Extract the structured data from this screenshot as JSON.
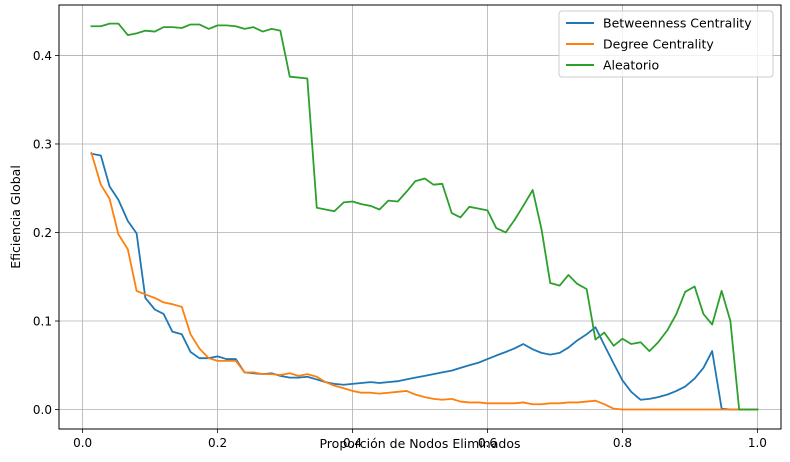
{
  "chart_data": {
    "type": "line",
    "title": "",
    "xlabel": "Proporción de Nodos Eliminados",
    "ylabel": "Eficiencia Global",
    "xlim": [
      -0.035,
      1.035
    ],
    "ylim": [
      -0.022,
      0.457
    ],
    "x_ticks": [
      0.0,
      0.2,
      0.4,
      0.6,
      0.8,
      1.0
    ],
    "x_tick_labels": [
      "0.0",
      "0.2",
      "0.4",
      "0.6",
      "0.8",
      "1.0"
    ],
    "y_ticks": [
      0.0,
      0.1,
      0.2,
      0.3,
      0.4
    ],
    "y_tick_labels": [
      "0.0",
      "0.1",
      "0.2",
      "0.3",
      "0.4"
    ],
    "grid": true,
    "legend_position": "top-right",
    "series": [
      {
        "name": "Betweenness Centrality",
        "color": "#1f77b4",
        "x": [
          0.013,
          0.027,
          0.04,
          0.053,
          0.067,
          0.08,
          0.093,
          0.107,
          0.12,
          0.133,
          0.147,
          0.16,
          0.173,
          0.187,
          0.2,
          0.213,
          0.227,
          0.24,
          0.253,
          0.267,
          0.28,
          0.293,
          0.307,
          0.32,
          0.333,
          0.347,
          0.36,
          0.373,
          0.387,
          0.4,
          0.413,
          0.427,
          0.44,
          0.453,
          0.467,
          0.48,
          0.493,
          0.507,
          0.52,
          0.533,
          0.547,
          0.56,
          0.573,
          0.587,
          0.6,
          0.613,
          0.627,
          0.64,
          0.653,
          0.667,
          0.68,
          0.693,
          0.707,
          0.72,
          0.733,
          0.747,
          0.76,
          0.773,
          0.787,
          0.8,
          0.813,
          0.827,
          0.84,
          0.853,
          0.867,
          0.88,
          0.893,
          0.907,
          0.92,
          0.933,
          0.947,
          0.96,
          0.973,
          0.987,
          1.0
        ],
        "values": [
          0.289,
          0.287,
          0.252,
          0.237,
          0.213,
          0.199,
          0.126,
          0.113,
          0.108,
          0.088,
          0.085,
          0.065,
          0.058,
          0.058,
          0.06,
          0.057,
          0.057,
          0.042,
          0.041,
          0.04,
          0.041,
          0.038,
          0.036,
          0.036,
          0.037,
          0.034,
          0.031,
          0.029,
          0.028,
          0.029,
          0.03,
          0.031,
          0.03,
          0.031,
          0.032,
          0.034,
          0.036,
          0.038,
          0.04,
          0.042,
          0.044,
          0.047,
          0.05,
          0.053,
          0.057,
          0.061,
          0.065,
          0.069,
          0.074,
          0.068,
          0.064,
          0.062,
          0.064,
          0.07,
          0.078,
          0.085,
          0.093,
          0.073,
          0.052,
          0.033,
          0.02,
          0.011,
          0.012,
          0.014,
          0.017,
          0.021,
          0.026,
          0.035,
          0.047,
          0.066,
          0.001,
          0.0,
          0.0,
          0.0,
          0.0
        ]
      },
      {
        "name": "Degree Centrality",
        "color": "#ff7f0e",
        "x": [
          0.013,
          0.027,
          0.04,
          0.053,
          0.067,
          0.08,
          0.093,
          0.107,
          0.12,
          0.133,
          0.147,
          0.16,
          0.173,
          0.187,
          0.2,
          0.213,
          0.227,
          0.24,
          0.253,
          0.267,
          0.28,
          0.293,
          0.307,
          0.32,
          0.333,
          0.347,
          0.36,
          0.373,
          0.387,
          0.4,
          0.413,
          0.427,
          0.44,
          0.453,
          0.467,
          0.48,
          0.493,
          0.507,
          0.52,
          0.533,
          0.547,
          0.56,
          0.573,
          0.587,
          0.6,
          0.613,
          0.627,
          0.64,
          0.653,
          0.667,
          0.68,
          0.693,
          0.707,
          0.72,
          0.733,
          0.747,
          0.76,
          0.773,
          0.787,
          0.8,
          0.813,
          0.827,
          0.84,
          0.853,
          0.867,
          0.88,
          0.893,
          0.907,
          0.92,
          0.933,
          0.947,
          0.96,
          0.973,
          0.987,
          1.0
        ],
        "values": [
          0.29,
          0.254,
          0.238,
          0.198,
          0.181,
          0.134,
          0.13,
          0.126,
          0.121,
          0.119,
          0.116,
          0.085,
          0.069,
          0.058,
          0.055,
          0.055,
          0.055,
          0.042,
          0.042,
          0.04,
          0.04,
          0.039,
          0.041,
          0.038,
          0.04,
          0.037,
          0.031,
          0.027,
          0.024,
          0.021,
          0.019,
          0.019,
          0.018,
          0.019,
          0.02,
          0.021,
          0.017,
          0.014,
          0.012,
          0.011,
          0.012,
          0.009,
          0.008,
          0.008,
          0.007,
          0.007,
          0.007,
          0.007,
          0.008,
          0.006,
          0.006,
          0.007,
          0.007,
          0.008,
          0.008,
          0.009,
          0.01,
          0.006,
          0.001,
          0.0,
          0.0,
          0.0,
          0.0,
          0.0,
          0.0,
          0.0,
          0.0,
          0.0,
          0.0,
          0.0,
          0.0,
          0.0,
          0.0,
          0.0,
          0.0
        ]
      },
      {
        "name": "Aleatorio",
        "color": "#2ca02c",
        "x": [
          0.013,
          0.027,
          0.04,
          0.053,
          0.067,
          0.08,
          0.093,
          0.107,
          0.12,
          0.133,
          0.147,
          0.16,
          0.173,
          0.187,
          0.2,
          0.213,
          0.227,
          0.24,
          0.253,
          0.267,
          0.28,
          0.293,
          0.307,
          0.32,
          0.333,
          0.347,
          0.36,
          0.373,
          0.387,
          0.4,
          0.413,
          0.427,
          0.44,
          0.453,
          0.467,
          0.48,
          0.493,
          0.507,
          0.52,
          0.533,
          0.547,
          0.56,
          0.573,
          0.587,
          0.6,
          0.613,
          0.627,
          0.64,
          0.653,
          0.667,
          0.68,
          0.693,
          0.707,
          0.72,
          0.733,
          0.747,
          0.76,
          0.773,
          0.787,
          0.8,
          0.813,
          0.827,
          0.84,
          0.853,
          0.867,
          0.88,
          0.893,
          0.907,
          0.92,
          0.933,
          0.947,
          0.96,
          0.973,
          0.987,
          1.0
        ],
        "values": [
          0.433,
          0.433,
          0.436,
          0.436,
          0.423,
          0.425,
          0.428,
          0.427,
          0.432,
          0.432,
          0.431,
          0.435,
          0.435,
          0.43,
          0.434,
          0.434,
          0.433,
          0.43,
          0.432,
          0.427,
          0.43,
          0.428,
          0.376,
          0.375,
          0.374,
          0.228,
          0.226,
          0.224,
          0.234,
          0.235,
          0.232,
          0.23,
          0.226,
          0.236,
          0.235,
          0.246,
          0.258,
          0.261,
          0.254,
          0.255,
          0.222,
          0.217,
          0.229,
          0.227,
          0.225,
          0.205,
          0.2,
          0.214,
          0.23,
          0.248,
          0.204,
          0.143,
          0.14,
          0.152,
          0.142,
          0.136,
          0.079,
          0.087,
          0.072,
          0.08,
          0.074,
          0.076,
          0.066,
          0.076,
          0.09,
          0.108,
          0.133,
          0.139,
          0.108,
          0.096,
          0.134,
          0.1,
          0.0,
          0.0,
          0.0
        ]
      }
    ]
  }
}
